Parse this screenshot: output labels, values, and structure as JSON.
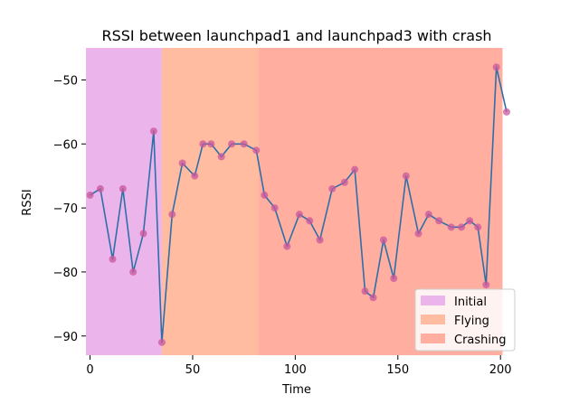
{
  "chart_data": {
    "type": "line",
    "title": "RSSI between launchpad1 and launchpad3 with crash",
    "xlabel": "Time",
    "ylabel": "RSSI",
    "xlim": [
      -2,
      203
    ],
    "ylim": [
      -93,
      -45
    ],
    "xticks": [
      0,
      50,
      100,
      150,
      200
    ],
    "xtick_labels": [
      "0",
      "50",
      "100",
      "150",
      "200"
    ],
    "yticks": [
      -50,
      -60,
      -70,
      -80,
      -90
    ],
    "ytick_labels": [
      "−50",
      "−60",
      "−70",
      "−80",
      "−90"
    ],
    "grid": false,
    "legend_position": "bottom-right",
    "phases": [
      {
        "name": "Initial",
        "x0": -2,
        "x1": 35,
        "color": "#EBB5EB"
      },
      {
        "name": "Flying",
        "x0": 35,
        "x1": 82,
        "color": "#FFBCA0"
      },
      {
        "name": "Crashing",
        "x0": 82,
        "x1": 201,
        "color": "#FFAEA0"
      }
    ],
    "series": [
      {
        "line_color": "#2E6FA8",
        "marker_color": "#C9579C",
        "x": [
          0,
          5,
          11,
          16,
          21,
          26,
          31,
          35,
          40,
          45,
          51,
          55,
          59,
          64,
          69,
          75,
          81,
          85,
          90,
          96,
          102,
          107,
          112,
          118,
          124,
          129,
          134,
          138,
          143,
          148,
          154,
          160,
          165,
          170,
          176,
          181,
          185,
          189,
          193,
          198,
          203
        ],
        "y": [
          -68,
          -67,
          -78,
          -67,
          -80,
          -74,
          -58,
          -91,
          -71,
          -63,
          -65,
          -60,
          -60,
          -62,
          -60,
          -60,
          -61,
          -68,
          -70,
          -76,
          -71,
          -72,
          -75,
          -67,
          -66,
          -64,
          -83,
          -84,
          -75,
          -81,
          -65,
          -74,
          -71,
          -72,
          -73,
          -73,
          -72,
          -73,
          -82,
          -48,
          -55
        ]
      }
    ]
  }
}
